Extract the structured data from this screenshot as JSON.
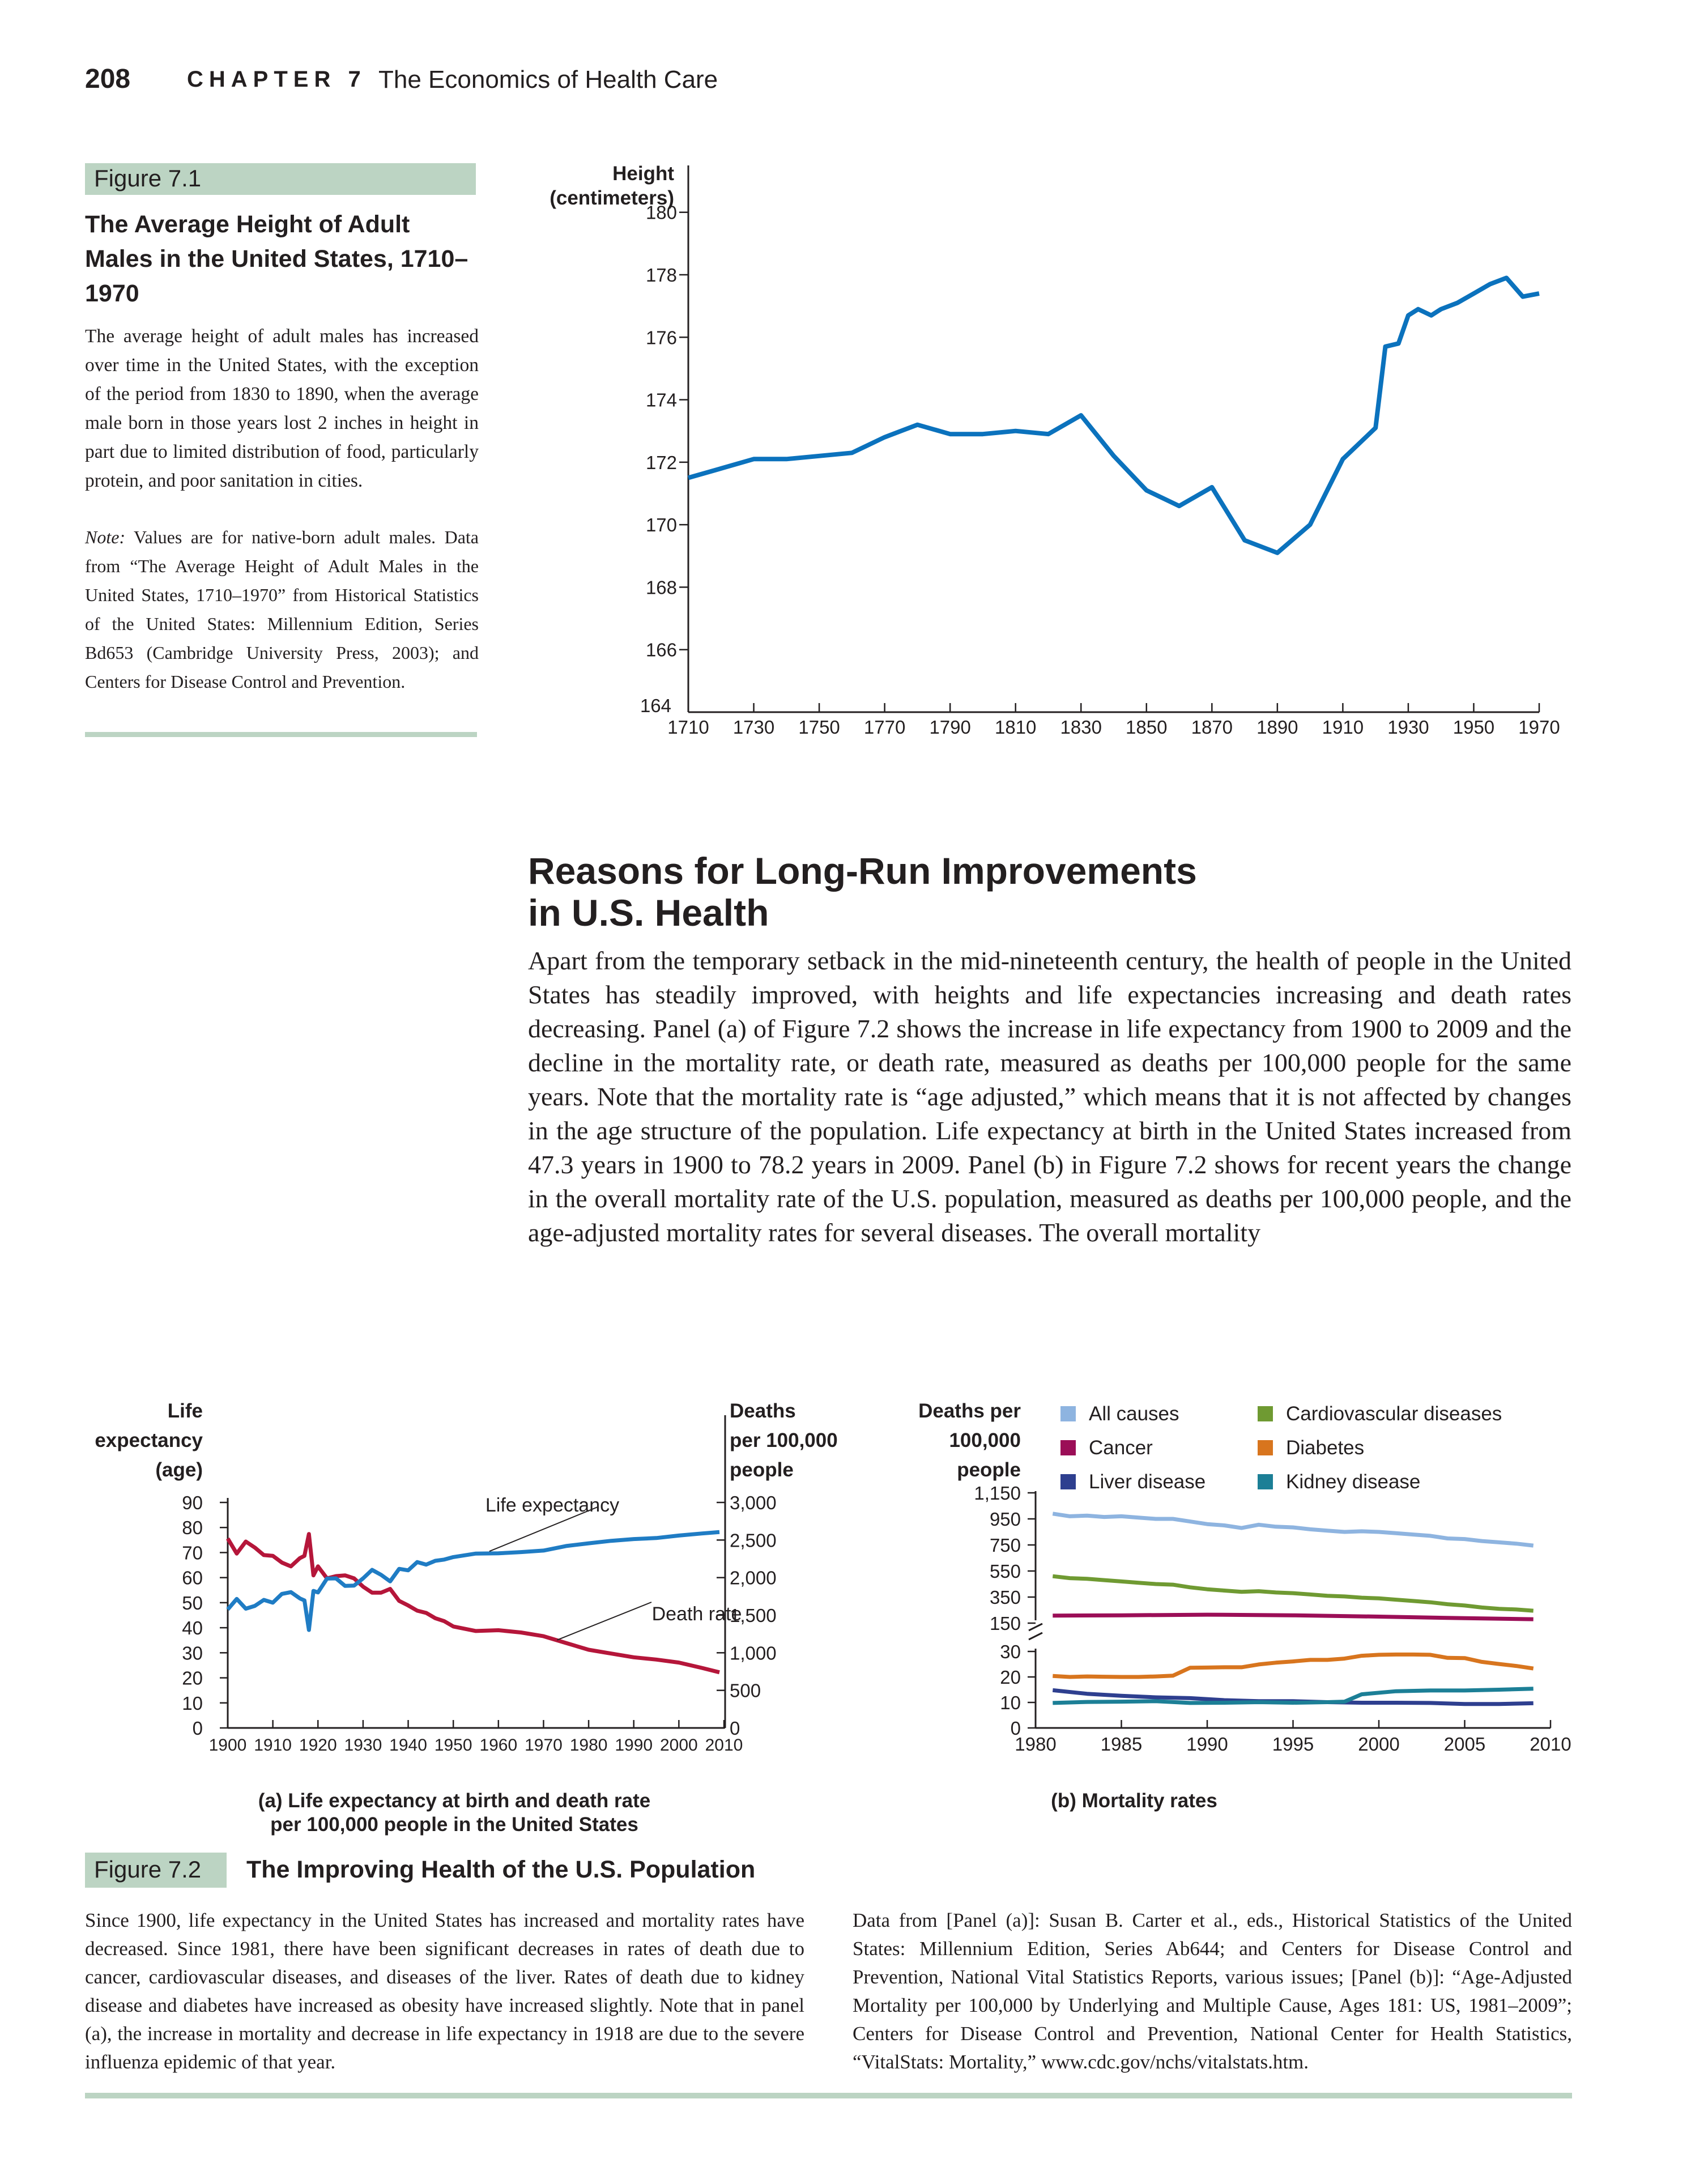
{
  "header": {
    "page_number": "208",
    "chapter_label": "CHAPTER 7",
    "chapter_title": "The Economics of Health Care"
  },
  "figure71": {
    "label": "Figure 7.1",
    "title": "The Average Height of Adult Males in the United States, 1710–1970",
    "caption": "The average height of adult males has increased over time in the United States, with the exception of the period from 1830 to 1890, when the average male born in those years lost 2 inches in height in part due to limited distribution of food, particularly protein, and poor sanitation in cities.",
    "note_label": "Note:",
    "note": "Values are for native-born adult males. Data from “The Average Height of Adult Males in the United States, 1710–1970” from Historical Statistics of the United States: Millennium Edition, Series Bd653 (Cambridge University Press, 2003); and Centers for Disease Control and Prevention."
  },
  "section": {
    "heading_line1": "Reasons for Long-Run Improvements",
    "heading_line2": "in U.S. Health",
    "body": "Apart from the temporary setback in the mid-nineteenth century, the health of people in the United States has steadily improved, with heights and life expectancies increasing and death rates decreasing. Panel (a) of Figure 7.2 shows the increase in life expectancy from 1900 to 2009 and the decline in the mortality rate, or death rate, measured as deaths per 100,000 people for the same years. Note that the mortality rate is “age adjusted,” which means that it is not affected by changes in the age structure of the population. Life expectancy at birth in the United States increased from 47.3 years in 1900 to 78.2 years in 2009. Panel (b) in Figure 7.2 shows for recent years the change in the overall mortality rate of the U.S. population, measured as deaths per 100,000 people, and the age-adjusted mortality rates for several diseases. The overall mortality"
  },
  "figure72": {
    "label": "Figure 7.2",
    "title": "The Improving Health of the U.S. Population",
    "caption": "Since 1900, life expectancy in the United States has increased and mortality rates have decreased. Since 1981, there have been significant decreases in rates of death due to cancer, cardiovascular diseases, and diseases of the liver. Rates of death due to kidney disease and diabetes have increased as obesity have increased slightly. Note that in panel (a), the increase in mortality and decrease in life expectancy in 1918 are due to the severe influenza epidemic of that year.",
    "source": "Data from [Panel (a)]: Susan B. Carter et al., eds., Historical Statistics of the United States: Millennium Edition, Series Ab644; and Centers for Disease Control and Prevention, National Vital Statistics Reports, various issues; [Panel (b)]: “Age-Adjusted Mortality per 100,000 by Underlying and Multiple Cause, Ages 181: US, 1981–2009”; Centers for Disease Control and Prevention, National Center for Health Statistics, “VitalStats: Mortality,” www.cdc.gov/nchs/vitalstats.htm."
  },
  "colors": {
    "accent_bar": "#bcd4c3",
    "height_line": "#0b72bd",
    "life_expectancy": "#1f7cc4",
    "death_rate": "#b5163a",
    "all_causes": "#8eb4e0",
    "cancer": "#9b0e57",
    "liver": "#2e3f8f",
    "cardiovascular": "#6f9a32",
    "diabetes": "#d8751e",
    "kidney": "#1c7f96"
  },
  "chart_data": [
    {
      "type": "line",
      "ylabel": "Height (centimeters)",
      "x_ticks": [
        1710,
        1730,
        1750,
        1770,
        1790,
        1810,
        1830,
        1850,
        1870,
        1890,
        1910,
        1930,
        1950,
        1970
      ],
      "y_ticks": [
        164,
        166,
        168,
        170,
        172,
        174,
        176,
        178,
        180
      ],
      "xlim": [
        1710,
        1970
      ],
      "ylim": [
        164,
        181.5
      ],
      "series": [
        {
          "x": [
            1710,
            1720,
            1730,
            1740,
            1750,
            1760,
            1770,
            1780,
            1790,
            1800,
            1810,
            1820,
            1830,
            1840,
            1850,
            1860,
            1870,
            1880,
            1890,
            1900,
            1910,
            1920,
            1923,
            1927,
            1930,
            1933,
            1937,
            1940,
            1945,
            1950,
            1955,
            1960,
            1965,
            1970
          ],
          "values": [
            171.5,
            171.8,
            172.1,
            172.1,
            172.2,
            172.3,
            172.8,
            173.2,
            172.9,
            172.9,
            173.0,
            172.9,
            173.5,
            172.2,
            171.1,
            170.6,
            171.2,
            169.5,
            169.1,
            170.0,
            172.1,
            173.1,
            175.7,
            175.8,
            176.7,
            176.9,
            176.7,
            176.9,
            177.1,
            177.4,
            177.7,
            177.9,
            177.3,
            177.4
          ]
        }
      ]
    },
    {
      "type": "line",
      "xlabel": "(a) Life expectancy at birth and death rate per 100,000 people in the United States",
      "ylabel_left": "Life expectancy (age)",
      "ylabel_right": "Deaths per 100,000 people",
      "x_ticks": [
        1900,
        1910,
        1920,
        1930,
        1940,
        1950,
        1960,
        1970,
        1980,
        1990,
        2000,
        2010
      ],
      "y_ticks_left": [
        0,
        10,
        20,
        30,
        40,
        50,
        60,
        70,
        80,
        90
      ],
      "y_ticks_right": [
        "0",
        "500",
        "1,000",
        "1,500",
        "2,000",
        "2,500",
        "3,000"
      ],
      "ylim_left": [
        0,
        90
      ],
      "ylim_right": [
        0,
        3000
      ],
      "annotations": [
        "Life expectancy",
        "Death rate"
      ],
      "series": [
        {
          "name": "Life expectancy",
          "axis": "left",
          "x": [
            1900,
            1902,
            1904,
            1906,
            1908,
            1910,
            1912,
            1914,
            1916,
            1917,
            1918,
            1919,
            1920,
            1922,
            1924,
            1926,
            1928,
            1930,
            1932,
            1934,
            1936,
            1938,
            1940,
            1942,
            1944,
            1946,
            1948,
            1950,
            1955,
            1960,
            1965,
            1970,
            1975,
            1980,
            1985,
            1990,
            1995,
            2000,
            2005,
            2009
          ],
          "values": [
            47.3,
            51.5,
            47.6,
            48.7,
            51.1,
            50.0,
            53.5,
            54.2,
            51.7,
            50.9,
            39.1,
            54.7,
            54.1,
            59.6,
            59.7,
            56.7,
            56.8,
            59.7,
            63.1,
            61.1,
            58.5,
            63.5,
            62.9,
            66.2,
            65.2,
            66.7,
            67.2,
            68.2,
            69.6,
            69.7,
            70.2,
            70.8,
            72.6,
            73.7,
            74.7,
            75.4,
            75.8,
            76.8,
            77.6,
            78.2
          ]
        },
        {
          "name": "Death rate",
          "axis": "right",
          "x": [
            1900,
            1902,
            1904,
            1906,
            1908,
            1910,
            1912,
            1914,
            1916,
            1917,
            1918,
            1919,
            1920,
            1922,
            1924,
            1926,
            1928,
            1930,
            1932,
            1934,
            1936,
            1938,
            1940,
            1942,
            1944,
            1946,
            1948,
            1950,
            1955,
            1960,
            1965,
            1970,
            1975,
            1980,
            1985,
            1990,
            1995,
            2000,
            2005,
            2009
          ],
          "values": [
            2520,
            2320,
            2480,
            2400,
            2300,
            2290,
            2200,
            2150,
            2260,
            2290,
            2580,
            2030,
            2150,
            1990,
            2020,
            2030,
            1990,
            1880,
            1800,
            1800,
            1850,
            1690,
            1630,
            1560,
            1530,
            1460,
            1420,
            1350,
            1290,
            1300,
            1270,
            1220,
            1130,
            1040,
            990,
            940,
            910,
            870,
            800,
            740
          ]
        }
      ]
    },
    {
      "type": "line",
      "xlabel": "(b) Mortality rates",
      "ylabel": "Deaths per 100,000 people",
      "axis_break": "between 30 and 150",
      "x_ticks": [
        1980,
        1985,
        1990,
        1995,
        2000,
        2005,
        2010
      ],
      "y_ticks": [
        "0",
        "10",
        "20",
        "30",
        "150",
        "350",
        "550",
        "750",
        "950",
        "1,150"
      ],
      "legend_position": "top",
      "series": [
        {
          "name": "All causes",
          "x": [
            1981,
            1982,
            1983,
            1984,
            1985,
            1986,
            1987,
            1988,
            1989,
            1990,
            1991,
            1992,
            1993,
            1994,
            1995,
            1996,
            1997,
            1998,
            1999,
            2000,
            2001,
            2002,
            2003,
            2004,
            2005,
            2006,
            2007,
            2008,
            2009
          ],
          "values": [
            990,
            970,
            975,
            965,
            970,
            960,
            950,
            950,
            930,
            910,
            900,
            880,
            905,
            890,
            885,
            870,
            860,
            850,
            855,
            850,
            840,
            830,
            820,
            800,
            795,
            780,
            770,
            760,
            745
          ]
        },
        {
          "name": "Cardiovascular diseases",
          "x": [
            1981,
            1982,
            1983,
            1984,
            1985,
            1986,
            1987,
            1988,
            1989,
            1990,
            1991,
            1992,
            1993,
            1994,
            1995,
            1996,
            1997,
            1998,
            1999,
            2000,
            2001,
            2002,
            2003,
            2004,
            2005,
            2006,
            2007,
            2008,
            2009
          ],
          "values": [
            510,
            495,
            490,
            480,
            470,
            460,
            450,
            445,
            425,
            410,
            400,
            390,
            395,
            385,
            380,
            370,
            360,
            355,
            345,
            340,
            330,
            320,
            310,
            295,
            285,
            270,
            260,
            255,
            245
          ]
        },
        {
          "name": "Cancer",
          "x": [
            1981,
            1985,
            1990,
            1995,
            2000,
            2005,
            2009
          ],
          "values": [
            208,
            210,
            215,
            210,
            200,
            188,
            180
          ]
        },
        {
          "name": "Diabetes",
          "x": [
            1981,
            1982,
            1983,
            1984,
            1985,
            1986,
            1987,
            1988,
            1989,
            1990,
            1991,
            1992,
            1993,
            1994,
            1995,
            1996,
            1997,
            1998,
            1999,
            2000,
            2001,
            2002,
            2003,
            2004,
            2005,
            2006,
            2007,
            2008,
            2009
          ],
          "values": [
            20.4,
            20.0,
            20.2,
            20.1,
            20.0,
            20.0,
            20.2,
            20.5,
            23.6,
            23.7,
            23.8,
            23.8,
            24.9,
            25.6,
            26.1,
            26.7,
            26.7,
            27.2,
            28.3,
            28.7,
            28.8,
            28.8,
            28.7,
            27.5,
            27.4,
            25.9,
            25.1,
            24.3,
            23.3
          ]
        },
        {
          "name": "Liver disease",
          "x": [
            1981,
            1983,
            1985,
            1987,
            1989,
            1991,
            1993,
            1995,
            1997,
            1999,
            2001,
            2003,
            2005,
            2007,
            2009
          ],
          "values": [
            14.8,
            13.4,
            12.6,
            12.0,
            11.7,
            10.9,
            10.5,
            10.5,
            10.1,
            9.9,
            9.9,
            9.8,
            9.4,
            9.4,
            9.7
          ]
        },
        {
          "name": "Kidney disease",
          "x": [
            1981,
            1983,
            1985,
            1987,
            1989,
            1991,
            1993,
            1995,
            1997,
            1998,
            1999,
            2001,
            2003,
            2005,
            2007,
            2009
          ],
          "values": [
            9.8,
            10.2,
            10.3,
            10.5,
            9.8,
            9.9,
            10.1,
            9.9,
            10.1,
            10.3,
            13.2,
            14.4,
            14.7,
            14.7,
            15.0,
            15.4
          ]
        }
      ]
    }
  ]
}
